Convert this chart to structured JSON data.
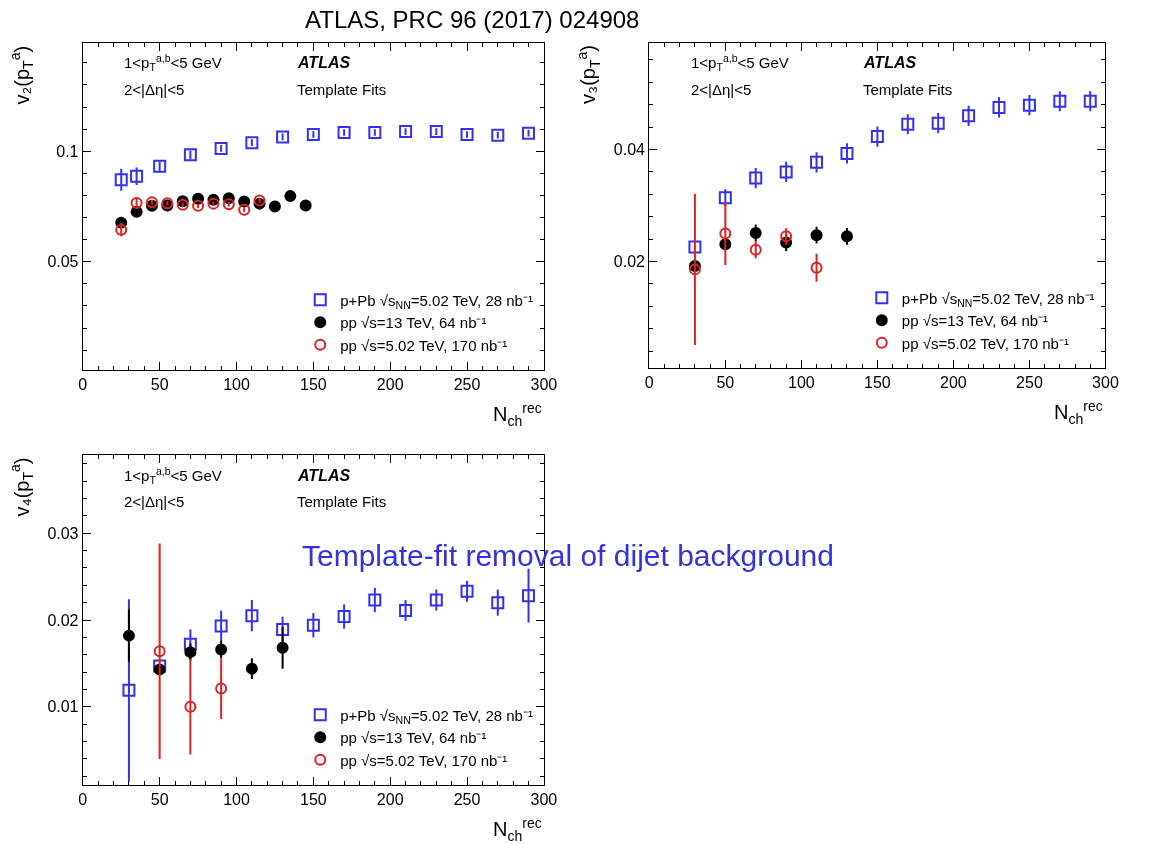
{
  "chart_data": [
    {
      "type": "scatter",
      "title": "ATLAS, PRC 96 (2017) 024908",
      "xlabel": "N$_{ch}$$^{rec}$",
      "ylabel": "v₂(p$_{T}$$^{a}$)",
      "xlim": [
        0,
        300
      ],
      "xticks": [
        0,
        50,
        100,
        150,
        200,
        250,
        300
      ],
      "ylim": [
        0.001,
        0.149
      ],
      "yticks": [
        0.05,
        0.1
      ],
      "legend": "bottom right",
      "annotations": [
        "1<p$_{T}$$^{a,b}$<5 GeV",
        "2<|Δη|<5",
        "ATLAS",
        "Template Fits"
      ],
      "series": [
        {
          "name": "p+Pb √s$_{NN}$=5.02 TeV, 28 nb⁻¹",
          "color": "#3333ee",
          "marker": "square",
          "x": [
            25,
            35,
            50,
            70,
            90,
            110,
            130,
            150,
            170,
            190,
            210,
            230,
            250,
            270,
            290
          ],
          "values": [
            0.0871,
            0.0887,
            0.0932,
            0.0984,
            0.1013,
            0.1039,
            0.1065,
            0.1076,
            0.1085,
            0.1085,
            0.1089,
            0.1089,
            0.1076,
            0.1073,
            0.1082
          ],
          "errors": [
            0.005,
            0.004,
            0.002,
            0.002,
            0.0015,
            0.0015,
            0.0015,
            0.0015,
            0.0015,
            0.0015,
            0.0015,
            0.0015,
            0.0015,
            0.0015,
            0.0015
          ]
        },
        {
          "name": "pp √s=13 TeV, 64 nb⁻¹",
          "color": "#000000",
          "marker": "circle",
          "x": [
            25,
            35,
            45,
            55,
            65,
            75,
            85,
            95,
            105,
            115,
            125,
            135,
            145
          ],
          "values": [
            0.0677,
            0.0726,
            0.0753,
            0.0755,
            0.0774,
            0.0785,
            0.0781,
            0.0787,
            0.0773,
            0.0763,
            0.075,
            0.0797,
            0.0755
          ],
          "errors": [
            0.001,
            0.001,
            0.001,
            0.001,
            0.001,
            0.001,
            0.001,
            0.001,
            0.001,
            0.001,
            0.001,
            0.001,
            0.001
          ]
        },
        {
          "name": "pp √s=5.02 TeV, 170 nb⁻¹",
          "color": "#dd2222",
          "marker": "circle",
          "x": [
            25,
            35,
            45,
            55,
            65,
            75,
            85,
            95,
            105,
            115
          ],
          "values": [
            0.0645,
            0.0766,
            0.0769,
            0.0765,
            0.0758,
            0.0753,
            0.0763,
            0.076,
            0.0735,
            0.0777
          ],
          "errors": [
            0.003,
            0.002,
            0.001,
            0.001,
            0.001,
            0.001,
            0.001,
            0.001,
            0.001,
            0.001
          ]
        }
      ]
    },
    {
      "type": "scatter",
      "xlabel": "N$_{ch}$$^{rec}$",
      "ylabel": "v₃(p$_{T}$$^{a}$)",
      "xlim": [
        0,
        300
      ],
      "xticks": [
        0,
        50,
        100,
        150,
        200,
        250,
        300
      ],
      "ylim": [
        0.001,
        0.059
      ],
      "yticks": [
        0.02,
        0.04
      ],
      "legend": "bottom right",
      "annotations": [
        "1<p$_{T}$$^{a,b}$<5 GeV",
        "2<|Δη|<5",
        "ATLAS",
        "Template Fits"
      ],
      "series": [
        {
          "name": "p+Pb √s$_{NN}$=5.02 TeV, 28 nb⁻¹",
          "color": "#3333ee",
          "marker": "square",
          "x": [
            30,
            50,
            70,
            90,
            110,
            130,
            150,
            170,
            190,
            210,
            230,
            250,
            270,
            290
          ],
          "values": [
            0.0226,
            0.0314,
            0.0349,
            0.036,
            0.0377,
            0.0393,
            0.0423,
            0.0445,
            0.0447,
            0.046,
            0.0475,
            0.0479,
            0.0486,
            0.0486
          ],
          "errors": [
            null,
            0.0015,
            0.0018,
            0.0018,
            0.0018,
            0.0018,
            0.0018,
            0.0018,
            0.0018,
            0.0018,
            0.0018,
            0.0018,
            0.0018,
            0.0018
          ]
        },
        {
          "name": "pp √s=13 TeV, 64 nb⁻¹",
          "color": "#000000",
          "marker": "circle",
          "x": [
            30,
            50,
            70,
            90,
            110,
            130
          ],
          "values": [
            0.0192,
            0.0231,
            0.0251,
            0.0234,
            0.0247,
            0.0245
          ],
          "errors": [
            null,
            null,
            0.0015,
            0.0015,
            0.0015,
            0.0015
          ]
        },
        {
          "name": "pp √s=5.02 TeV, 170 nb⁻¹",
          "color": "#dd2222",
          "marker": "circle",
          "x": [
            30,
            50,
            70,
            90,
            110
          ],
          "values": [
            0.0186,
            0.025,
            0.0221,
            0.0245,
            0.0189
          ],
          "errors": [
            0.0135,
            0.0056,
            0.0015,
            0.0015,
            0.0025
          ]
        }
      ]
    },
    {
      "type": "scatter",
      "xlabel": "N$_{ch}$$^{rec}$",
      "ylabel": "v₄(p$_{T}$$^{a}$)",
      "xlim": [
        0,
        300
      ],
      "xticks": [
        0,
        50,
        100,
        150,
        200,
        250,
        300
      ],
      "ylim": [
        0.001,
        0.039
      ],
      "yticks": [
        0.01,
        0.02,
        0.03
      ],
      "legend": "bottom right",
      "annotations": [
        "1<p$_{T}$$^{a,b}$<5 GeV",
        "2<|Δη|<5",
        "ATLAS",
        "Template Fits",
        "Template-fit removal of dijet background"
      ],
      "series": [
        {
          "name": "p+Pb √s$_{NN}$=5.02 TeV, 28 nb⁻¹",
          "color": "#3333ee",
          "marker": "square",
          "x": [
            30,
            50,
            70,
            90,
            110,
            130,
            150,
            170,
            190,
            210,
            230,
            250,
            270,
            290
          ],
          "values": [
            0.0119,
            0.0147,
            0.0172,
            0.0193,
            0.0205,
            0.0189,
            0.0194,
            0.0204,
            0.0223,
            0.0211,
            0.0223,
            0.0233,
            0.022,
            0.0228
          ],
          "errors": [
            0.0105,
            null,
            0.0017,
            0.0018,
            0.0018,
            0.0015,
            0.0014,
            0.0014,
            0.0014,
            0.0012,
            0.0012,
            0.0012,
            0.0015,
            0.0031
          ]
        },
        {
          "name": "pp √s=13 TeV, 64 nb⁻¹",
          "color": "#000000",
          "marker": "circle",
          "x": [
            30,
            50,
            70,
            90,
            110,
            130
          ],
          "values": [
            0.0182,
            0.0143,
            0.0163,
            0.0166,
            0.0144,
            0.0168
          ],
          "errors": [
            0.003,
            null,
            0.001,
            0.001,
            0.0012,
            0.0024
          ]
        },
        {
          "name": "pp √s=5.02 TeV, 170 nb⁻¹",
          "color": "#dd2222",
          "marker": "circle",
          "x": [
            50,
            70,
            90
          ],
          "values": [
            0.0164,
            0.01,
            0.0121
          ],
          "errors": [
            0.0124,
            0.0055,
            0.0035
          ]
        }
      ]
    }
  ]
}
